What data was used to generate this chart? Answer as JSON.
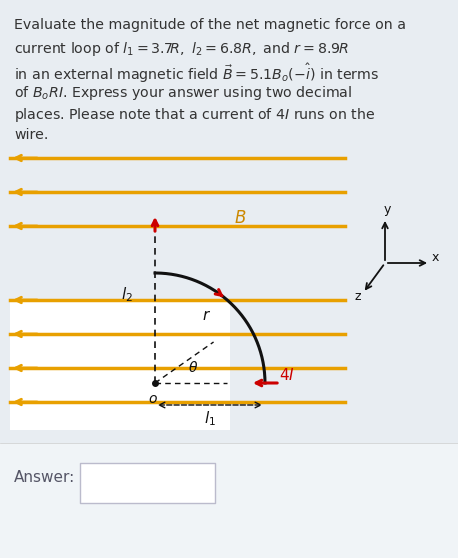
{
  "bg_color": "#e8edf2",
  "diagram_bg": "#dce3ea",
  "white_color": "#ffffff",
  "text_color": "#333333",
  "orange_color": "#e8a000",
  "red_color": "#cc0000",
  "black_color": "#111111",
  "answer_bg": "#ffffff",
  "answer_border": "#cccccc",
  "title_lines": [
    "Evaluate the magnitude of the net magnetic force on a",
    "current loop of $l_1 = 3.7R,\\ l_2 = 6.8R,$ and $r = 8.9R$",
    "in an external magnetic field $\\vec{B} = 5.1B_o(-\\hat{i})$ in terms",
    "of $B_oRI$. Express your answer using two decimal",
    "places. Please note that a current of $4I$ runs on the",
    "wire."
  ],
  "answer_label": "Answer:"
}
